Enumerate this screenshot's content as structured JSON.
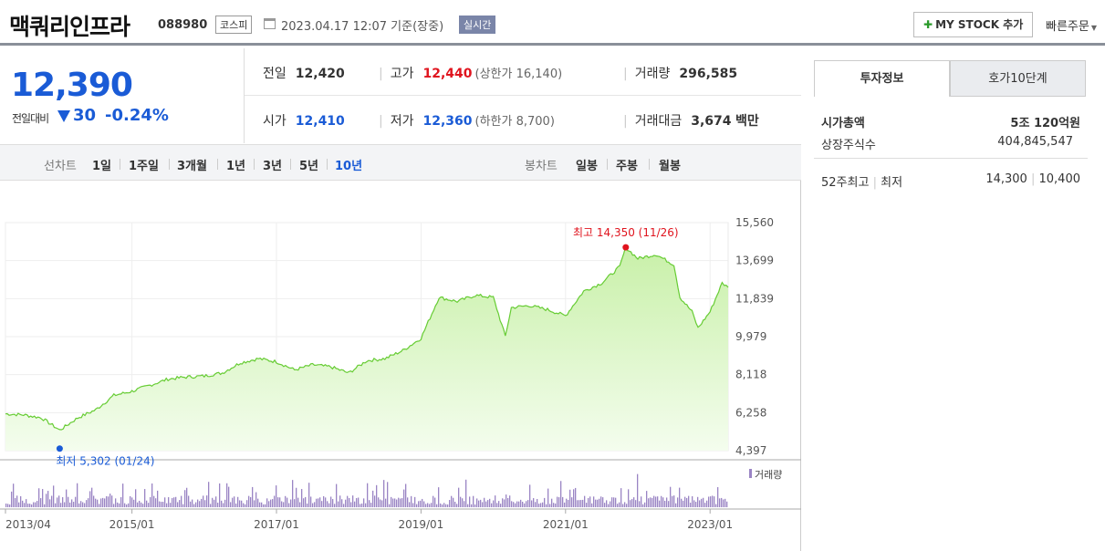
{
  "header": {
    "stock_name": "맥쿼리인프라",
    "stock_code": "088980",
    "market": "코스피",
    "as_of": "2023.04.17 12:07 기준(장중)",
    "realtime": "실시간",
    "mystock_label": "MY STOCK 추가",
    "quick_order": "빠른주문"
  },
  "price": {
    "current": "12,390",
    "diff_label": "전일대비",
    "diff": "30",
    "diff_pct": "-0.24%"
  },
  "stats": {
    "prev_close_label": "전일",
    "prev_close": "12,420",
    "high_label": "고가",
    "high": "12,440",
    "upper_limit": "(상한가 16,140)",
    "volume_label": "거래량",
    "volume": "296,585",
    "open_label": "시가",
    "open": "12,410",
    "low_label": "저가",
    "low": "12,360",
    "lower_limit": "(하한가 8,700)",
    "amount_label": "거래대금",
    "amount": "3,674",
    "amount_unit": "백만"
  },
  "range_bar": {
    "line_label": "선차트",
    "line_ranges": [
      "1일",
      "1주일",
      "3개월",
      "1년",
      "3년",
      "5년",
      "10년"
    ],
    "active_range": "10년",
    "candle_label": "봉차트",
    "candle_ranges": [
      "일봉",
      "주봉",
      "월봉"
    ]
  },
  "side_panel": {
    "tab_active": "투자정보",
    "tab_inactive": "호가10단계",
    "market_cap_label": "시가총액",
    "market_cap": "5조 120억원",
    "shares_label": "상장주식수",
    "shares": "404,845,547",
    "w52_label": "52주최고",
    "w52_low_label": "최저",
    "w52_high": "14,300",
    "w52_low": "10,400"
  },
  "chart_data": {
    "type": "area",
    "period": "10년",
    "y_ticks": [
      "15,560",
      "13,699",
      "11,839",
      "9,979",
      "8,118",
      "6,258",
      "4,397"
    ],
    "ylim": [
      4397,
      15560
    ],
    "x_ticks": [
      "2013/04",
      "2015/01",
      "2017/01",
      "2019/01",
      "2021/01",
      "2023/01"
    ],
    "volume_legend": "거래량",
    "max_annotation": "최고 14,350 (11/26)",
    "min_annotation": "최저 5,302 (01/24)",
    "colors": {
      "line": "#66cc33",
      "fill_top": "#c8f0a8",
      "fill_bottom": "#f4fdee",
      "volume": "#9a84c4",
      "max": "#e0141e",
      "min": "#1a5bd6"
    },
    "series": [
      {
        "x": "2013/04",
        "y": 6200
      },
      {
        "x": "2013/07",
        "y": 6150
      },
      {
        "x": "2013/10",
        "y": 6000
      },
      {
        "x": "2014/01",
        "y": 5400
      },
      {
        "x": "2014/04",
        "y": 6000
      },
      {
        "x": "2014/07",
        "y": 6400
      },
      {
        "x": "2014/10",
        "y": 7100
      },
      {
        "x": "2015/01",
        "y": 7300
      },
      {
        "x": "2015/04",
        "y": 7600
      },
      {
        "x": "2015/07",
        "y": 7900
      },
      {
        "x": "2015/10",
        "y": 8000
      },
      {
        "x": "2016/01",
        "y": 8050
      },
      {
        "x": "2016/04",
        "y": 8200
      },
      {
        "x": "2016/07",
        "y": 8700
      },
      {
        "x": "2016/10",
        "y": 8900
      },
      {
        "x": "2017/01",
        "y": 8750
      },
      {
        "x": "2017/04",
        "y": 8350
      },
      {
        "x": "2017/07",
        "y": 8600
      },
      {
        "x": "2017/10",
        "y": 8500
      },
      {
        "x": "2018/01",
        "y": 8200
      },
      {
        "x": "2018/04",
        "y": 8800
      },
      {
        "x": "2018/07",
        "y": 8900
      },
      {
        "x": "2018/10",
        "y": 9300
      },
      {
        "x": "2019/01",
        "y": 9900
      },
      {
        "x": "2019/04",
        "y": 11900
      },
      {
        "x": "2019/07",
        "y": 11700
      },
      {
        "x": "2019/10",
        "y": 12000
      },
      {
        "x": "2020/01",
        "y": 11900
      },
      {
        "x": "2020/03",
        "y": 10000
      },
      {
        "x": "2020/04",
        "y": 11400
      },
      {
        "x": "2020/07",
        "y": 11500
      },
      {
        "x": "2020/10",
        "y": 11300
      },
      {
        "x": "2021/01",
        "y": 11000
      },
      {
        "x": "2021/04",
        "y": 12200
      },
      {
        "x": "2021/07",
        "y": 12600
      },
      {
        "x": "2021/10",
        "y": 13400
      },
      {
        "x": "2021/11",
        "y": 14350
      },
      {
        "x": "2022/01",
        "y": 13800
      },
      {
        "x": "2022/04",
        "y": 14000
      },
      {
        "x": "2022/07",
        "y": 13500
      },
      {
        "x": "2022/08",
        "y": 11900
      },
      {
        "x": "2022/10",
        "y": 11200
      },
      {
        "x": "2022/11",
        "y": 10400
      },
      {
        "x": "2023/01",
        "y": 11200
      },
      {
        "x": "2023/03",
        "y": 12600
      },
      {
        "x": "2023/04",
        "y": 12390
      }
    ]
  }
}
